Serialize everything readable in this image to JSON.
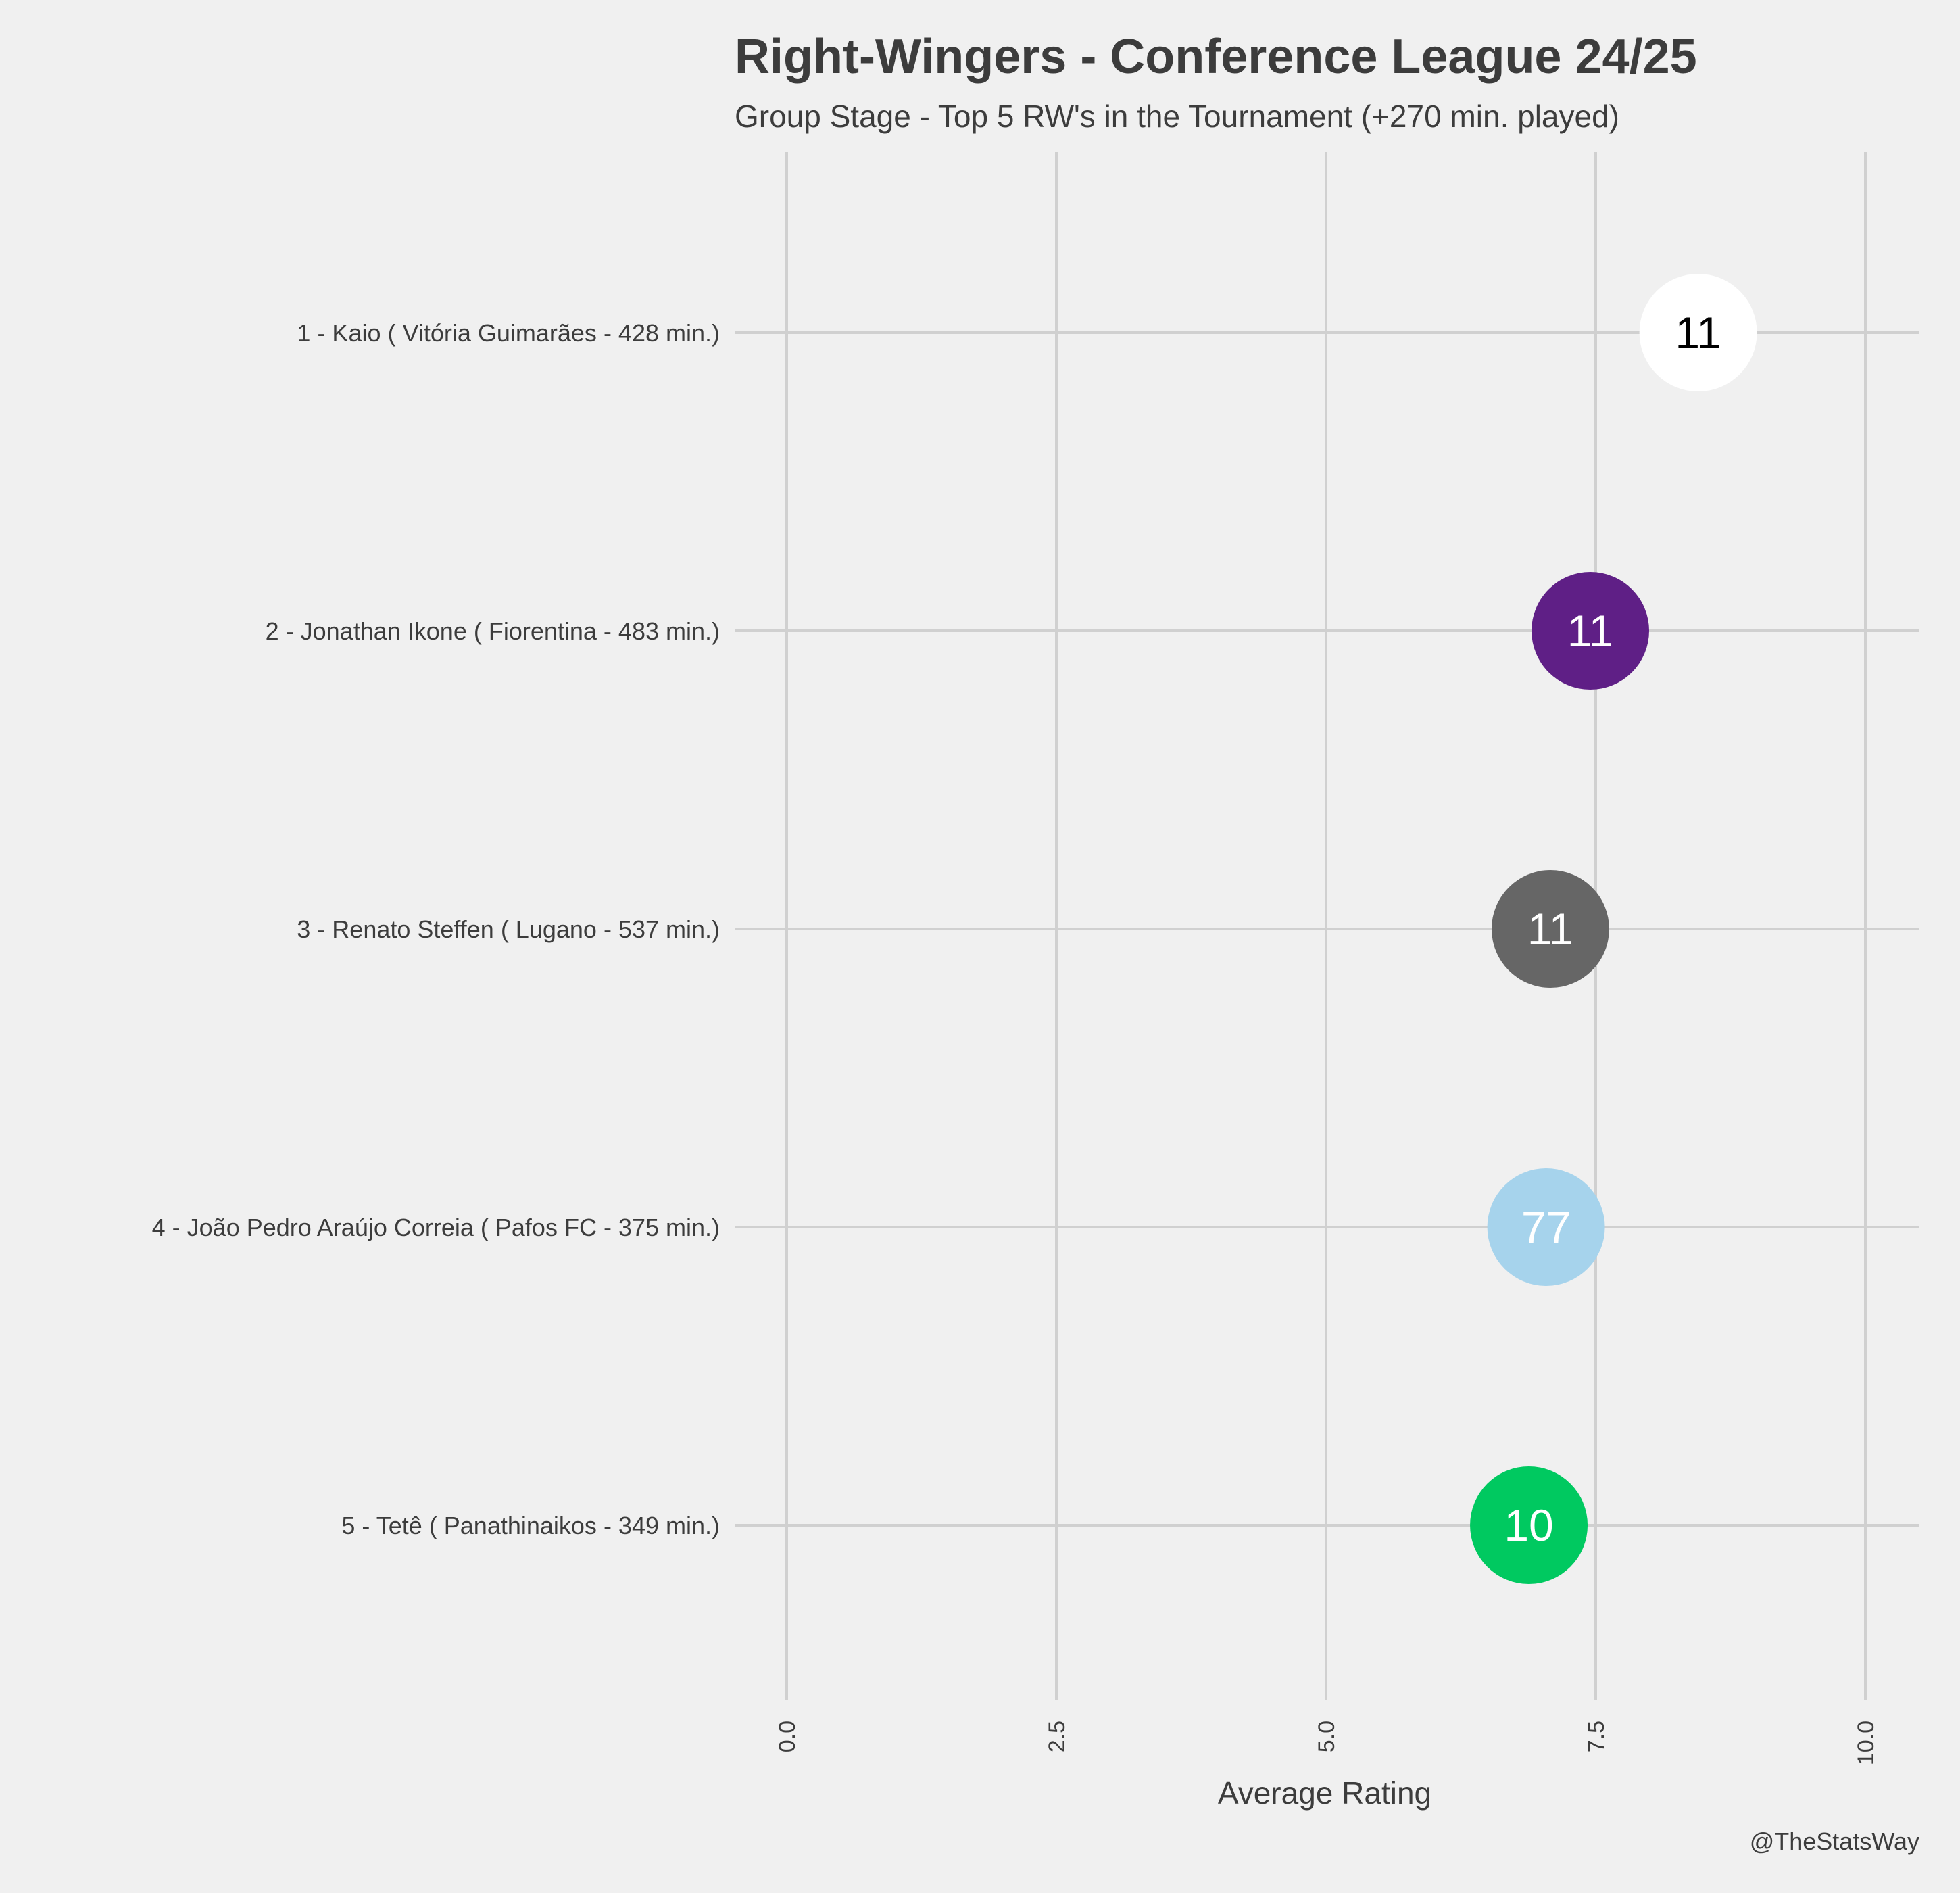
{
  "chart_data": {
    "type": "scatter",
    "title": "Right-Wingers - Conference League 24/25",
    "subtitle": "Group Stage - Top 5 RW's in the Tournament (+270 min. played)",
    "xlabel": "Average Rating",
    "ylabel": "",
    "xlim": [
      0,
      10
    ],
    "xticks": [
      "0.0",
      "2.5",
      "5.0",
      "7.5",
      "10.0"
    ],
    "grid": true,
    "credit": "@TheStatsWay",
    "points": [
      {
        "label": "1 - Kaio  ( Vitória Guimarães - 428 min.)",
        "value": 8.45,
        "number": "11",
        "color": "#ffffff",
        "text_color": "#000000"
      },
      {
        "label": "2 - Jonathan Ikone  ( Fiorentina - 483 min.)",
        "value": 7.45,
        "number": "11",
        "color": "#5f1f86",
        "text_color": "#ffffff"
      },
      {
        "label": "3 - Renato Steffen  ( Lugano - 537 min.)",
        "value": 7.08,
        "number": "11",
        "color": "#666666",
        "text_color": "#ffffff"
      },
      {
        "label": "4 - João Pedro Araújo Correia  ( Pafos FC - 375 min.)",
        "value": 7.04,
        "number": "77",
        "color": "#a6d3ec",
        "text_color": "#ffffff"
      },
      {
        "label": "5 - Tetê  ( Panathinaikos - 349 min.)",
        "value": 6.88,
        "number": "10",
        "color": "#00c960",
        "text_color": "#ffffff"
      }
    ]
  }
}
